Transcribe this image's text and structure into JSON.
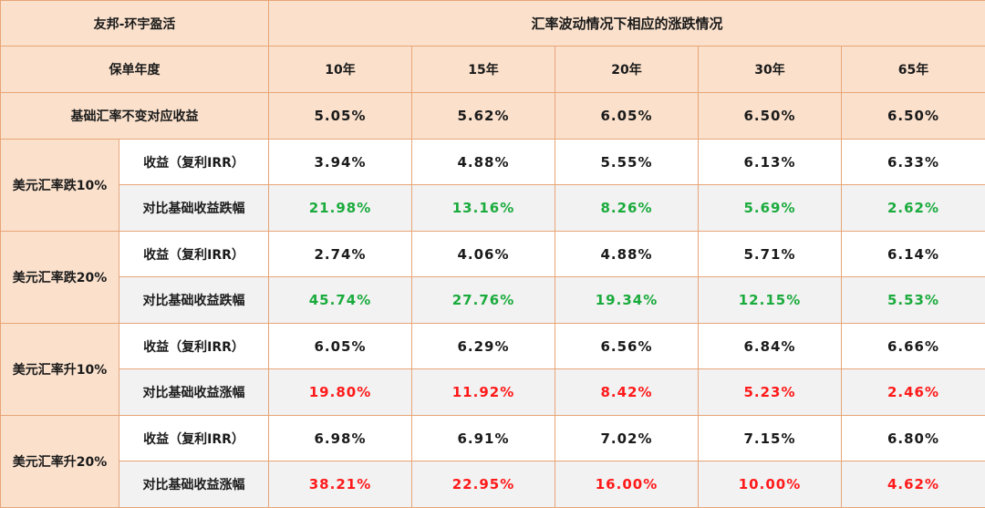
{
  "title_left": "友邦-环宇盈活",
  "title_right": "汇率波动情况下相应的涨跌情况",
  "policy_year_label": "保单年度",
  "years": [
    "10年",
    "15年",
    "20年",
    "30年",
    "65年"
  ],
  "base_row": {
    "label": "基础汇率不变对应收益",
    "values": [
      "5.05%",
      "5.62%",
      "6.05%",
      "6.50%",
      "6.50%"
    ]
  },
  "groups": [
    {
      "label": "美元汇率跌10%",
      "irr_label": "收益（复利IRR）",
      "irr": [
        "3.94%",
        "4.88%",
        "5.55%",
        "6.13%",
        "6.33%"
      ],
      "cmp_label": "对比基础收益跌幅",
      "cmp": [
        "21.98%",
        "13.16%",
        "8.26%",
        "5.69%",
        "2.62%"
      ]
    },
    {
      "label": "美元汇率跌20%",
      "irr_label": "收益（复利IRR）",
      "irr": [
        "2.74%",
        "4.06%",
        "4.88%",
        "5.71%",
        "6.14%"
      ],
      "cmp_label": "对比基础收益跌幅",
      "cmp": [
        "45.74%",
        "27.76%",
        "19.34%",
        "12.15%",
        "5.53%"
      ]
    },
    {
      "label": "美元汇率升10%",
      "irr_label": "收益（复利IRR）",
      "irr": [
        "6.05%",
        "6.29%",
        "6.56%",
        "6.84%",
        "6.66%"
      ],
      "cmp_label": "对比基础收益涨幅",
      "cmp": [
        "19.80%",
        "11.92%",
        "8.42%",
        "5.23%",
        "2.46%"
      ]
    },
    {
      "label": "美元汇率升20%",
      "irr_label": "收益（复利IRR）",
      "irr": [
        "6.98%",
        "6.91%",
        "7.02%",
        "7.15%",
        "6.80%"
      ],
      "cmp_label": "对比基础收益涨幅",
      "cmp": [
        "38.21%",
        "22.95%",
        "16.00%",
        "10.00%",
        "4.62%"
      ]
    }
  ],
  "colors": {
    "header_bg": "#fbe1cc",
    "border": "#e8a577",
    "decline": "#1bab3d",
    "rise": "#ff1a1a",
    "alt_row": "#f2f2f2"
  }
}
